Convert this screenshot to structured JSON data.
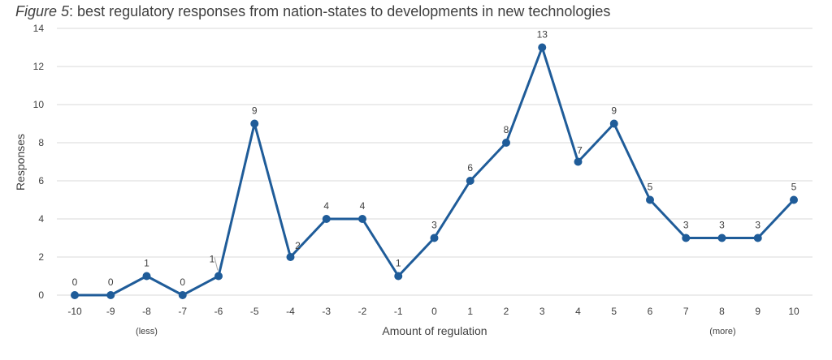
{
  "title": {
    "prefix": "Figure 5",
    "rest": ": best regulatory responses from nation-states to developments in new technologies"
  },
  "chart_data": {
    "type": "line",
    "title": "Figure 5: best regulatory responses from nation-states to developments in new technologies",
    "xlabel": "Amount of regulation",
    "ylabel": "Responses",
    "x": [
      -10,
      -9,
      -8,
      -7,
      -6,
      -5,
      -4,
      -3,
      -2,
      -1,
      0,
      1,
      2,
      3,
      4,
      5,
      6,
      7,
      8,
      9,
      10
    ],
    "x_tick_labels": [
      "-10",
      "-9",
      "-8",
      "-7",
      "-6",
      "-5",
      "-4",
      "-3",
      "-2",
      "-1",
      "0",
      "1",
      "2",
      "3",
      "4",
      "5",
      "6",
      "7",
      "8",
      "9",
      "10"
    ],
    "series": [
      {
        "values": [
          0,
          0,
          1,
          0,
          1,
          9,
          2,
          4,
          4,
          1,
          3,
          6,
          8,
          13,
          7,
          9,
          5,
          3,
          3,
          3,
          5
        ]
      }
    ],
    "ylim": [
      0,
      14
    ],
    "y_ticks": [
      0,
      2,
      4,
      6,
      8,
      10,
      12,
      14
    ],
    "grid": true,
    "data_labels": true,
    "annotations": [
      {
        "text": "(less)",
        "at_x": -8
      },
      {
        "text": "(more)",
        "at_x": 9
      }
    ],
    "line_color": "#1F5C99",
    "grid_color": "#D9D9D9"
  }
}
